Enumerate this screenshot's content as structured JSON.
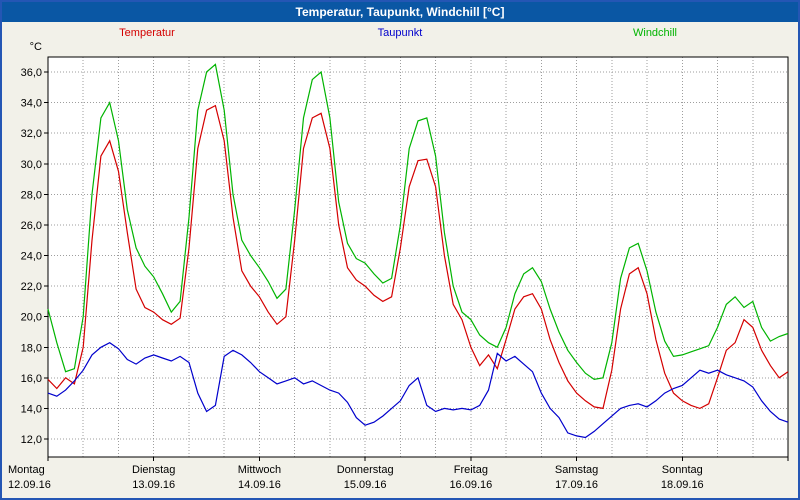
{
  "title": "Temperatur, Taupunkt, Windchill [°C]",
  "colors": {
    "title_bar_bg": "#0a57a4",
    "frame_border": "#2456b4",
    "page_bg": "#f2f1e9",
    "plot_bg": "#ffffff",
    "plot_border": "#000000",
    "grid": "#9e9e9e",
    "temperatur": "#d40000",
    "taupunkt": "#0000cc",
    "windchill": "#00b400"
  },
  "legend": [
    {
      "label": "Temperatur",
      "color": "#d40000"
    },
    {
      "label": "Taupunkt",
      "color": "#0000cc"
    },
    {
      "label": "Windchill",
      "color": "#00b400"
    }
  ],
  "y_axis": {
    "unit": "°C",
    "tick_values": [
      36,
      34,
      32,
      30,
      28,
      26,
      24,
      22,
      20,
      18,
      16,
      14,
      12
    ],
    "tick_labels": [
      "36,0",
      "34,0",
      "32,0",
      "30,0",
      "28,0",
      "26,0",
      "24,0",
      "22,0",
      "20,0",
      "18,0",
      "16,0",
      "14,0",
      "12,0"
    ]
  },
  "x_axis": {
    "days": [
      {
        "name": "Montag",
        "date": "12.09.16"
      },
      {
        "name": "Dienstag",
        "date": "13.09.16"
      },
      {
        "name": "Mittwoch",
        "date": "14.09.16"
      },
      {
        "name": "Donnerstag",
        "date": "15.09.16"
      },
      {
        "name": "Freitag",
        "date": "16.09.16"
      },
      {
        "name": "Samstag",
        "date": "17.09.16"
      },
      {
        "name": "Sonntag",
        "date": "18.09.16"
      }
    ],
    "total_hours": 168,
    "grid_interval_hours": 8
  },
  "chart_data": {
    "type": "line",
    "title": "Temperatur, Taupunkt, Windchill [°C]",
    "xlabel": "",
    "ylabel": "°C",
    "ylim": [
      12,
      36
    ],
    "grid": true,
    "legend_position": "top",
    "sample_interval_hours": 2,
    "x_range_hours": [
      0,
      168
    ],
    "series": [
      {
        "name": "Temperatur",
        "color": "#d40000",
        "values": [
          15.9,
          15.3,
          16.0,
          15.6,
          18.0,
          25.0,
          30.5,
          31.5,
          29.5,
          25.5,
          21.8,
          20.6,
          20.3,
          19.8,
          19.5,
          19.9,
          24.5,
          31.0,
          33.5,
          33.8,
          31.5,
          26.5,
          23.0,
          22.0,
          21.3,
          20.3,
          19.5,
          20.0,
          25.0,
          31.0,
          33.0,
          33.3,
          31.0,
          26.0,
          23.2,
          22.4,
          22.0,
          21.4,
          21.0,
          21.3,
          24.5,
          28.5,
          30.2,
          30.3,
          28.5,
          24.0,
          20.8,
          19.8,
          18.0,
          16.8,
          17.5,
          16.6,
          18.5,
          20.5,
          21.3,
          21.5,
          20.5,
          18.5,
          17.0,
          15.8,
          15.0,
          14.5,
          14.1,
          14.0,
          16.5,
          20.5,
          22.8,
          23.2,
          21.5,
          18.5,
          16.3,
          15.0,
          14.5,
          14.2,
          14.0,
          14.3,
          16.0,
          17.8,
          18.3,
          19.8,
          19.3,
          17.8,
          16.8,
          16.0,
          16.4
        ]
      },
      {
        "name": "Taupunkt",
        "color": "#0000cc",
        "values": [
          15.0,
          14.8,
          15.2,
          15.8,
          16.5,
          17.5,
          18.0,
          18.3,
          17.9,
          17.2,
          16.9,
          17.3,
          17.5,
          17.3,
          17.1,
          17.4,
          17.0,
          15.0,
          13.8,
          14.2,
          17.4,
          17.8,
          17.5,
          17.0,
          16.4,
          16.0,
          15.6,
          15.8,
          16.0,
          15.6,
          15.8,
          15.5,
          15.2,
          15.0,
          14.4,
          13.4,
          12.9,
          13.1,
          13.5,
          14.0,
          14.5,
          15.5,
          16.0,
          14.2,
          13.8,
          14.0,
          13.9,
          14.0,
          13.9,
          14.2,
          15.2,
          17.6,
          17.1,
          17.4,
          16.9,
          16.4,
          15.0,
          14.0,
          13.4,
          12.4,
          12.2,
          12.1,
          12.5,
          13.0,
          13.5,
          14.0,
          14.2,
          14.3,
          14.1,
          14.5,
          15.0,
          15.3,
          15.5,
          16.0,
          16.5,
          16.3,
          16.5,
          16.2,
          16.0,
          15.8,
          15.4,
          14.5,
          13.8,
          13.3,
          13.1
        ]
      },
      {
        "name": "Windchill",
        "color": "#00b400",
        "values": [
          20.5,
          18.3,
          16.4,
          16.6,
          20.0,
          28.0,
          33.0,
          34.0,
          31.5,
          27.0,
          24.5,
          23.3,
          22.6,
          21.5,
          20.3,
          21.0,
          26.5,
          33.5,
          36.0,
          36.5,
          33.5,
          28.0,
          25.0,
          24.0,
          23.2,
          22.3,
          21.2,
          21.8,
          27.0,
          33.0,
          35.5,
          36.0,
          33.0,
          27.5,
          24.8,
          23.8,
          23.5,
          22.8,
          22.2,
          22.5,
          26.0,
          31.0,
          32.8,
          33.0,
          30.5,
          25.5,
          22.0,
          20.3,
          19.8,
          18.8,
          18.3,
          18.0,
          19.3,
          21.5,
          22.8,
          23.2,
          22.3,
          20.5,
          19.0,
          17.8,
          17.0,
          16.3,
          15.9,
          16.0,
          18.3,
          22.5,
          24.5,
          24.8,
          23.0,
          20.3,
          18.4,
          17.4,
          17.5,
          17.7,
          17.9,
          18.1,
          19.3,
          20.8,
          21.3,
          20.6,
          21.0,
          19.3,
          18.4,
          18.7,
          18.9
        ]
      }
    ]
  }
}
